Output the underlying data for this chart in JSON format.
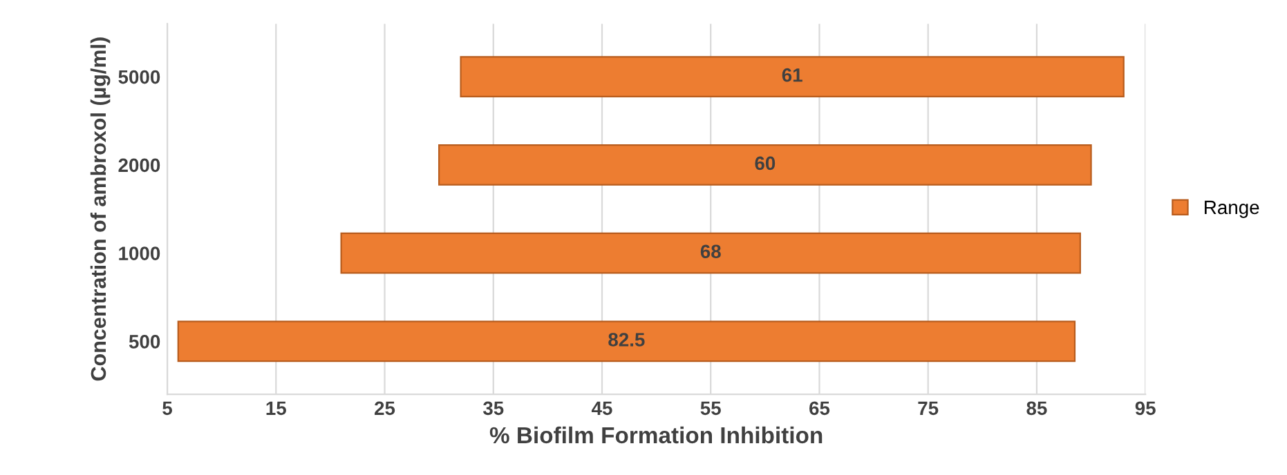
{
  "chart_data": {
    "type": "bar",
    "orientation": "horizontal",
    "categories": [
      "5000",
      "2000",
      "1000",
      "500"
    ],
    "series": [
      {
        "name": "Range",
        "color": "#ed7d31",
        "values": [
          61,
          60,
          68,
          82.5
        ],
        "base": [
          32,
          30,
          21,
          6
        ]
      }
    ],
    "xlabel": "% Biofilm Formation Inhibition",
    "ylabel": "Concentration of ambroxol (µg/ml)",
    "xlim": [
      5,
      95
    ],
    "xticks": [
      5,
      15,
      25,
      35,
      45,
      55,
      65,
      75,
      85,
      95
    ],
    "grid": "x",
    "legend": "right",
    "data_labels": true
  }
}
